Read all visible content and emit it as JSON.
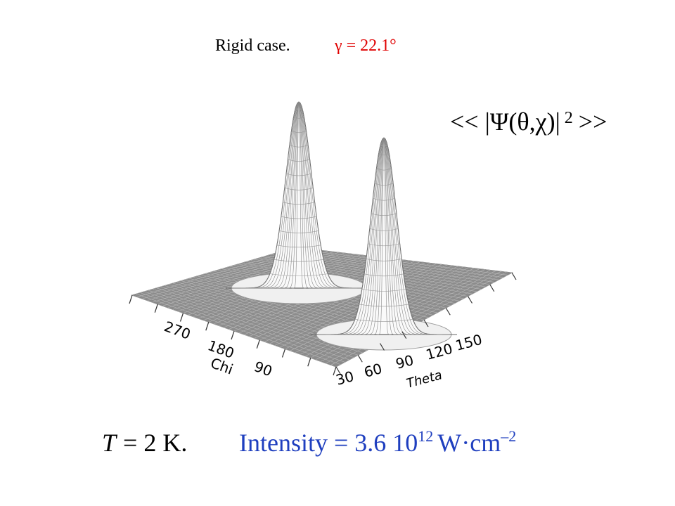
{
  "header": {
    "caption": "Rigid case.",
    "parameter": "γ = 22.1°"
  },
  "plot": {
    "quantity": {
      "prefix": "<< |Ψ(θ,χ)|",
      "exponent": "2",
      "suffix": ">>"
    },
    "chi_axis": {
      "label": "Chi",
      "ticks": [
        "270",
        "180",
        "90"
      ]
    },
    "theta_axis": {
      "label": "Theta",
      "ticks": [
        "30",
        "60",
        "90",
        "120",
        "150"
      ]
    }
  },
  "footer": {
    "temperature": {
      "symbol": "T",
      "rest": "= 2 K."
    },
    "intensity": {
      "text": "Intensity = 3.6 10",
      "exponent": "12",
      "unit": "W·cm",
      "unit_exponent": "–2"
    }
  }
}
